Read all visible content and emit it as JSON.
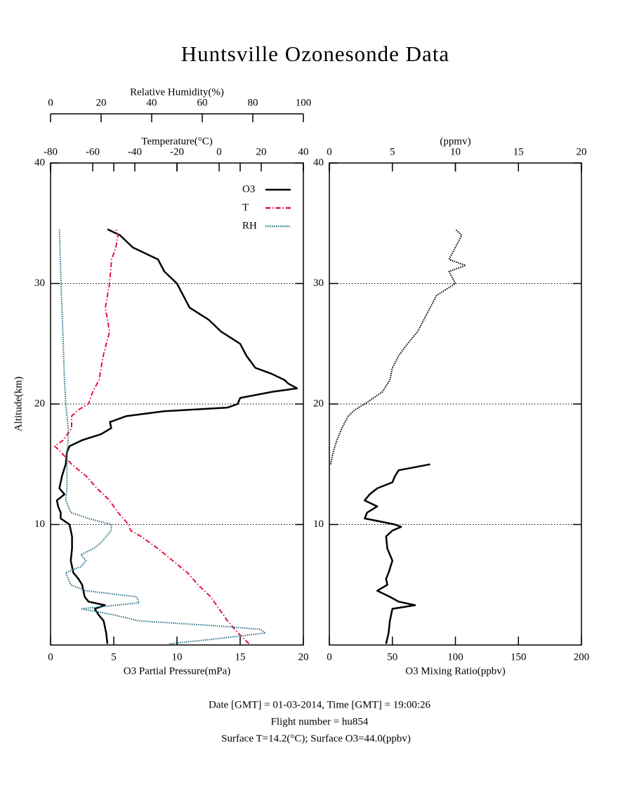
{
  "chart_data": [
    {
      "type": "line",
      "title": "Huntsville Ozonesonde Data",
      "ylabel": "Altitude(km)",
      "ylim": [
        0,
        40
      ],
      "yticks": [
        10,
        20,
        30,
        40
      ],
      "grid": true,
      "xlabel": "O3 Partial Pressure(mPa)",
      "xlim": [
        0,
        20
      ],
      "xticks": [
        0,
        5,
        10,
        15,
        20
      ],
      "x2label": "Temperature(°C)",
      "x2lim": [
        -80,
        40
      ],
      "x2ticks": [
        -80,
        -60,
        -40,
        -20,
        0,
        20,
        40
      ],
      "x3label": "Relative Humidity(%)",
      "x3lim": [
        0,
        100
      ],
      "x3ticks": [
        0,
        20,
        40,
        60,
        80,
        100
      ],
      "legend": "upper right",
      "series": [
        {
          "name": "O3",
          "color": "#000000",
          "axis": "x",
          "linestyle": "solid",
          "altitude": [
            0.1,
            1,
            2,
            2.5,
            3,
            3.3,
            3.6,
            4,
            5,
            5.5,
            6,
            7,
            8,
            9,
            10,
            10.5,
            11,
            11.5,
            12,
            12.5,
            13,
            14,
            15,
            16,
            16.5,
            17,
            17.5,
            18,
            18.5,
            19,
            19.4,
            19.7,
            20,
            20.5,
            21,
            21.3,
            21.7,
            22,
            22.5,
            23,
            24,
            25,
            26,
            27,
            28,
            29,
            30,
            31,
            32,
            33,
            34,
            34.5
          ],
          "values": [
            4.5,
            4.4,
            4.2,
            3.8,
            3.5,
            4.3,
            3.0,
            2.7,
            2.5,
            2.2,
            1.8,
            1.6,
            1.7,
            1.7,
            1.5,
            0.8,
            0.8,
            0.6,
            0.5,
            1.1,
            0.7,
            0.9,
            1.2,
            1.3,
            1.5,
            2.5,
            4.0,
            4.8,
            4.7,
            6,
            9,
            14,
            14.8,
            15,
            17.5,
            19.5,
            18.8,
            18.5,
            17.5,
            16.2,
            15.5,
            15,
            13.5,
            12.5,
            11,
            10.5,
            10,
            9,
            8.5,
            6.5,
            5.5,
            4.5
          ]
        },
        {
          "name": "T",
          "color": "#e8103c",
          "axis": "x2",
          "linestyle": "dashdot",
          "altitude": [
            0.1,
            1,
            2,
            3,
            4,
            5,
            6,
            7,
            8,
            9,
            9.5,
            10,
            11,
            12,
            13,
            14,
            15,
            16,
            16.5,
            17,
            18,
            19,
            19.5,
            20,
            21,
            22,
            24,
            26,
            28,
            30,
            32,
            33,
            34,
            34.5
          ],
          "values": [
            14.2,
            9,
            4,
            0,
            -4,
            -10,
            -15,
            -22,
            -29,
            -37,
            -42,
            -43,
            -48,
            -52,
            -58,
            -63,
            -70,
            -75,
            -78,
            -74,
            -70,
            -70,
            -67,
            -62,
            -60,
            -57,
            -55,
            -52,
            -54,
            -52,
            -51,
            -49,
            -48,
            -49
          ]
        },
        {
          "name": "RH",
          "color": "#2a7085",
          "axis": "x3",
          "linestyle": "dotted",
          "altitude": [
            0.1,
            0.5,
            1,
            1.3,
            1.6,
            2,
            2.5,
            3,
            3.5,
            4,
            4.5,
            5,
            5.5,
            6,
            6.5,
            7,
            7.5,
            8,
            8.5,
            9,
            9.5,
            10,
            10.5,
            11,
            12,
            13,
            14,
            15,
            16,
            17,
            18,
            20,
            22,
            25,
            28,
            31,
            34.5
          ],
          "values": [
            47,
            65,
            85,
            83,
            65,
            35,
            25,
            12,
            35,
            34,
            14,
            8,
            7,
            6,
            12,
            14,
            12,
            17,
            20,
            22,
            24,
            24,
            15,
            8,
            6,
            6.5,
            6.5,
            6.5,
            6.5,
            7,
            7,
            6,
            5.5,
            5,
            4.5,
            4,
            3.5
          ]
        }
      ]
    },
    {
      "type": "line",
      "ylim": [
        0,
        40
      ],
      "yticks": [
        10,
        20,
        30,
        40
      ],
      "grid": true,
      "xlabel": "O3 Mixing Ratio(ppbv)",
      "xlim": [
        0,
        200
      ],
      "xticks": [
        0,
        50,
        100,
        150,
        200
      ],
      "x2label": "(ppmv)",
      "x2lim": [
        0,
        20
      ],
      "x2ticks": [
        0,
        5,
        10,
        15,
        20
      ],
      "series": [
        {
          "color": "#000000",
          "axis": "x",
          "linestyle": "solid",
          "altitude": [
            0.1,
            1,
            2,
            3,
            3.3,
            3.6,
            4,
            4.5,
            5,
            5.5,
            6,
            7,
            8,
            9,
            9.5,
            9.8,
            10,
            10.3,
            10.5,
            11,
            11.5,
            12,
            12.5,
            13,
            13.5,
            14,
            14.5,
            15
          ],
          "values": [
            45,
            47,
            48,
            50,
            68,
            55,
            48,
            38,
            46,
            45,
            47,
            50,
            46,
            45,
            50,
            57,
            52,
            38,
            28,
            30,
            38,
            28,
            32,
            38,
            50,
            52,
            55,
            80
          ]
        },
        {
          "color": "#000000",
          "axis": "x2",
          "linestyle": "dotted",
          "altitude": [
            15,
            16,
            17,
            18,
            19,
            19.5,
            20,
            21,
            22,
            23,
            24,
            25,
            26,
            27,
            28,
            29,
            30,
            31,
            31.5,
            32,
            33,
            34,
            34.5
          ],
          "values": [
            0.1,
            0.3,
            0.6,
            1,
            1.5,
            2,
            2.8,
            4.2,
            4.8,
            5,
            5.5,
            6.2,
            7,
            7.5,
            8,
            8.5,
            10,
            9.5,
            10.8,
            9.5,
            10,
            10.5,
            10
          ]
        }
      ]
    }
  ],
  "footer": [
    "Date [GMT] = 01-03-2014,  Time [GMT] = 19:00:26",
    "Flight number = hu854",
    "Surface T=14.2(°C); Surface O3=44.0(ppbv)"
  ]
}
